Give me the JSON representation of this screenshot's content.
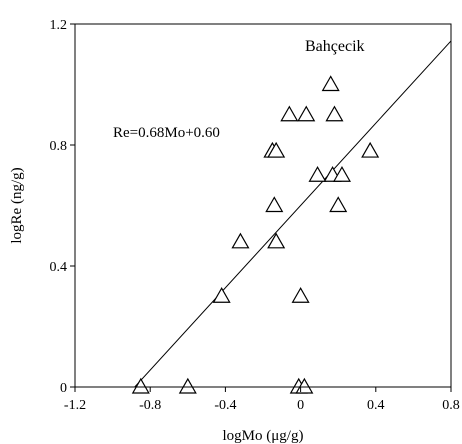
{
  "chart_data": {
    "type": "scatter",
    "title": "",
    "legend_label": "Bahçecik",
    "equation": "Re=0.68Mo+0.60",
    "xlabel": "logMo (μg/g)",
    "ylabel": "logRe (ng/g)",
    "xlim": [
      -1.2,
      0.8
    ],
    "ylim": [
      0,
      1.2
    ],
    "x_ticks": [
      -1.2,
      -0.8,
      -0.4,
      0,
      0.4,
      0.8
    ],
    "x_tick_labels": [
      "-1.2",
      "-0.8",
      "-0.4",
      "0",
      "0.4",
      "0.8"
    ],
    "y_ticks": [
      0,
      0.4,
      0.8,
      1.2
    ],
    "y_tick_labels": [
      "0",
      "0.4",
      "0.8",
      "1.2"
    ],
    "grid": false,
    "marker": "open-triangle",
    "trendline": {
      "slope": 0.68,
      "intercept": 0.6
    },
    "points": [
      {
        "x": -0.85,
        "y": 0.0
      },
      {
        "x": -0.6,
        "y": 0.0
      },
      {
        "x": -0.42,
        "y": 0.3
      },
      {
        "x": -0.32,
        "y": 0.48
      },
      {
        "x": -0.15,
        "y": 0.78
      },
      {
        "x": -0.13,
        "y": 0.78
      },
      {
        "x": -0.14,
        "y": 0.6
      },
      {
        "x": -0.13,
        "y": 0.48
      },
      {
        "x": -0.06,
        "y": 0.9
      },
      {
        "x": 0.03,
        "y": 0.9
      },
      {
        "x": 0.0,
        "y": 0.3
      },
      {
        "x": -0.01,
        "y": 0.0
      },
      {
        "x": 0.02,
        "y": 0.0
      },
      {
        "x": 0.09,
        "y": 0.7
      },
      {
        "x": 0.16,
        "y": 1.0
      },
      {
        "x": 0.17,
        "y": 0.7
      },
      {
        "x": 0.18,
        "y": 0.9
      },
      {
        "x": 0.2,
        "y": 0.6
      },
      {
        "x": 0.22,
        "y": 0.7
      },
      {
        "x": 0.37,
        "y": 0.78
      }
    ]
  }
}
